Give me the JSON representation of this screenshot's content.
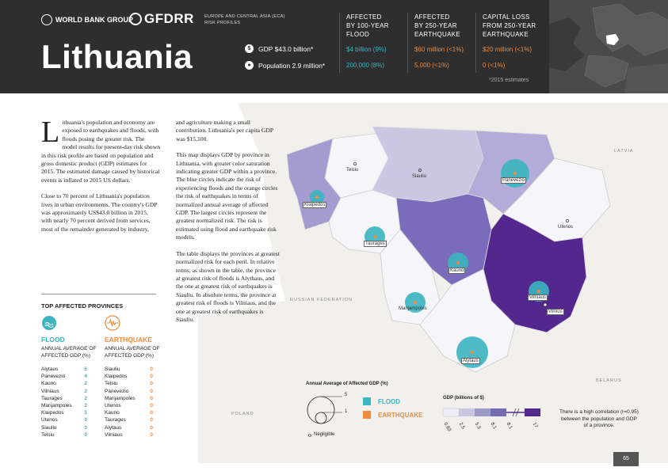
{
  "header": {
    "wb_logo": "WORLD BANK GROUP",
    "gfdrr_logo": "GFDRR",
    "region_line1": "EUROPE AND CENTRAL ASIA (ECA)",
    "region_line2": "RISK PROFILES",
    "country": "Lithuania",
    "gdp": "GDP $43.0 billion*",
    "population": "Population 2.9 million*",
    "estimates": "*2015 estimates",
    "columns": [
      {
        "title_lines": [
          "AFFECTED",
          "BY 100-YEAR",
          "FLOOD"
        ],
        "value1": "$4 billion (9%)",
        "value2": "200,000 (8%)",
        "color": "#3bb5c0"
      },
      {
        "title_lines": [
          "AFFECTED",
          "BY 250-YEAR",
          "EARTHQUAKE"
        ],
        "value1": "$60 million (<1%)",
        "value2": "5,000 (<1%)",
        "color": "#f08a3c"
      },
      {
        "title_lines": [
          "CAPITAL LOSS",
          "FROM 250-YEAR",
          "EARTHQUAKE"
        ],
        "value1": "$20 million (<1%)",
        "value2": "0 (<1%)",
        "color": "#f08a3c"
      }
    ]
  },
  "body": {
    "col1_dropcap": "L",
    "col1_p1": "ithuania's population and economy are exposed to earthquakes and floods, with floods posing the greater risk. The model results for present-day risk shown in this risk profile are based on population and gross domestic product (GDP) estimates for 2015. The estimated damage caused by historical events is inflated to 2015 US dollars.",
    "col1_p2": "Close to 70 percent of Lithuania's population lives in urban environments. The country's GDP was approximately US$43.0 billion in 2015, with nearly 70 percent derived from services, most of the remainder generated by industry,",
    "col2_p1": "and agriculture making a small contribution. Lithuania's per capita GDP was $15,100.",
    "col2_p2": "This map displays GDP by province in Lithuania, with greater color saturation indicating greater GDP within a province. The blue circles indicate the risk of experiencing floods and the orange circles the risk of earthquakes in terms of normalized annual average of affected GDP. The largest circles represent the greatest normalized risk. The risk is estimated using flood and earthquake risk models.",
    "col2_p3": "The table displays the provinces at greatest normalized risk for each peril. In relative terms, as shown in the table, the province at greatest risk of floods is Alythaus, and the one at greatest risk of earthquakes is Siauliu. In absolute terms, the province at greatest risk of floods is Vilniaus, and the one at greatest risk of earthquakes is Siauliu."
  },
  "table": {
    "title": "TOP AFFECTED PROVINCES",
    "flood_head": "FLOOD",
    "eq_head": "EARTHQUAKE",
    "sub_line1": "ANNUAL AVERAGE OF",
    "sub_line2": "AFFECTED GDP (%)",
    "flood_rows": [
      {
        "name": "Alytaus",
        "value": "5"
      },
      {
        "name": "Panevezio",
        "value": "4"
      },
      {
        "name": "Kauno",
        "value": "2"
      },
      {
        "name": "Vilniaus",
        "value": "2"
      },
      {
        "name": "Taurages",
        "value": "2"
      },
      {
        "name": "Marijampoles",
        "value": "2"
      },
      {
        "name": "Klaipedos",
        "value": "1"
      },
      {
        "name": "Utenos",
        "value": "0"
      },
      {
        "name": "Siauliu",
        "value": "0"
      },
      {
        "name": "Telsiu",
        "value": "0"
      }
    ],
    "eq_rows": [
      {
        "name": "Siauliu",
        "value": "0"
      },
      {
        "name": "Klaipedos",
        "value": "0"
      },
      {
        "name": "Telsiu",
        "value": "0"
      },
      {
        "name": "Panevezio",
        "value": "0"
      },
      {
        "name": "Marijampoles",
        "value": "0"
      },
      {
        "name": "Utenos",
        "value": "0"
      },
      {
        "name": "Kauno",
        "value": "0"
      },
      {
        "name": "Taurages",
        "value": "0"
      },
      {
        "name": "Alytaus",
        "value": "0"
      },
      {
        "name": "Vilniaus",
        "value": "0"
      }
    ]
  },
  "map": {
    "neighbors": {
      "latvia": "LATVIA",
      "russia": "RUSSIAN FEDERATION",
      "poland": "POLAND",
      "belarus": "BELARUS"
    },
    "provinces": {
      "telsiu": "Telsiu",
      "siauliu": "Siauliu",
      "panevezio": "Panevezio",
      "klaipedos": "Klaipedos",
      "utenos": "Utenos",
      "taurages": "Taurages",
      "kauno": "Kauno",
      "marijampoles": "Marijampoles",
      "vilniaus": "Vilniaus",
      "vilnius": "Vilnius",
      "alytaus": "Alytaus"
    },
    "colors": {
      "flood": "#3bb5c0",
      "earthquake": "#f08a3c",
      "gdp_low": "#efedf5",
      "gdp_high": "#54278f"
    }
  },
  "legend": {
    "circle_title": "Annual Average of Affected GDP (%)",
    "size_large": "5",
    "size_small": "1",
    "negligible": "Negligible",
    "flood": "FLOOD",
    "earthquake": "EARTHQUAKE",
    "gdp_title": "GDP (billions of $)",
    "gdp_ticks": [
      "0.83",
      "2.5",
      "5.3",
      "8.1",
      "8.1",
      "17"
    ],
    "correlation": "There is a high correlation (r=0.95) between the population and GDP of a province."
  },
  "page_number": "65"
}
